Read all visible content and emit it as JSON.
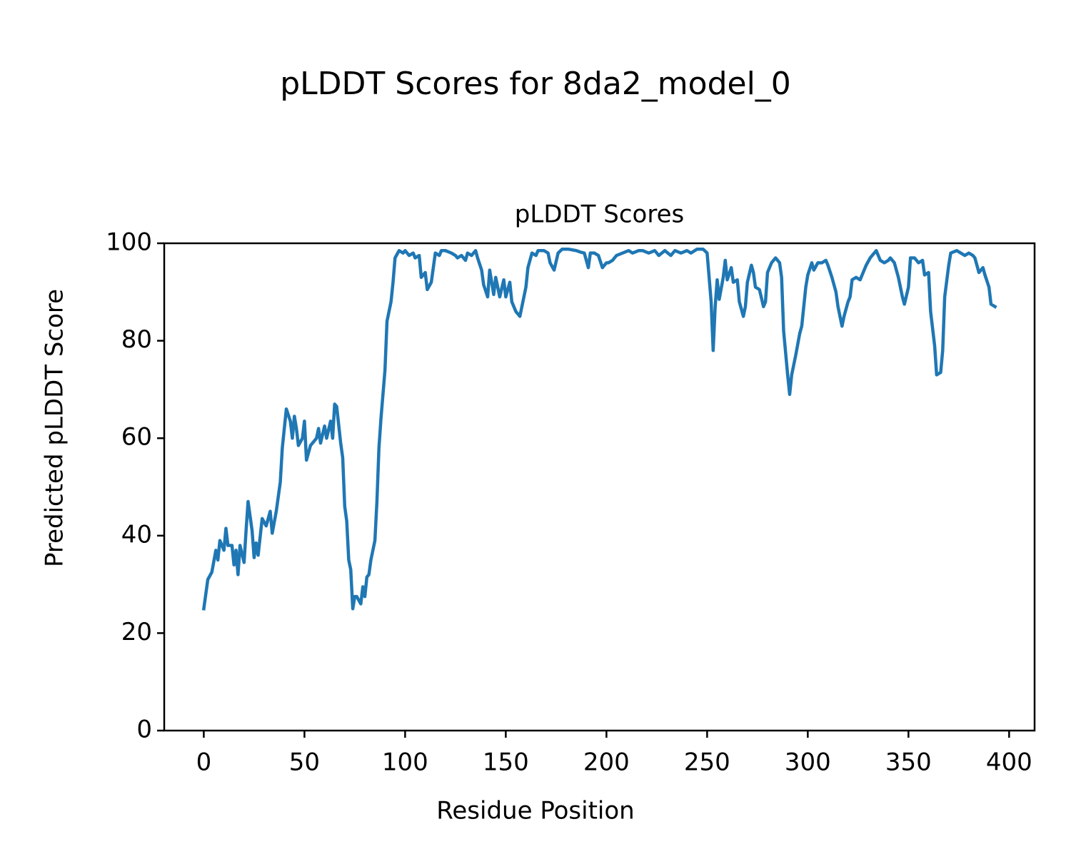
{
  "chart_data": {
    "type": "line",
    "title": "pLDDT Scores for 8da2_model_0",
    "subtitle": "pLDDT Scores",
    "x_label": "Residue Position",
    "y_label": "Predicted pLDDT Score",
    "color": "#1f77b4",
    "xlim": [
      -19.65,
      412.65
    ],
    "ylim": [
      0,
      100
    ],
    "xticks": [
      0,
      50,
      100,
      150,
      200,
      250,
      300,
      350,
      400
    ],
    "yticks": [
      0,
      20,
      40,
      60,
      80,
      100
    ],
    "grid": false,
    "x": [
      0,
      2,
      4,
      6,
      7,
      8,
      10,
      11,
      12,
      14,
      15,
      16,
      17,
      18,
      20,
      21,
      22,
      24,
      25,
      26,
      27,
      29,
      31,
      33,
      34,
      36,
      38,
      39,
      40,
      41,
      43,
      44,
      45,
      46,
      47,
      49,
      50,
      51,
      53,
      54,
      56,
      57,
      58,
      60,
      61,
      63,
      64,
      65,
      66,
      68,
      69,
      70,
      71,
      72,
      73,
      74,
      75,
      76,
      78,
      79,
      80,
      81,
      82,
      83,
      85,
      86,
      87,
      88,
      90,
      91,
      93,
      94,
      95,
      97,
      99,
      100,
      102,
      104,
      105,
      107,
      108,
      110,
      111,
      113,
      114,
      115,
      117,
      118,
      120,
      123,
      125,
      126,
      128,
      130,
      131,
      133,
      135,
      136,
      138,
      139,
      141,
      142,
      144,
      145,
      147,
      149,
      150,
      152,
      153,
      155,
      157,
      158,
      160,
      161,
      163,
      165,
      166,
      169,
      171,
      172,
      174,
      176,
      178,
      181,
      185,
      187,
      189,
      191,
      192,
      194,
      196,
      198,
      200,
      201,
      203,
      205,
      208,
      211,
      213,
      216,
      218,
      221,
      224,
      226,
      229,
      232,
      234,
      237,
      240,
      242,
      245,
      248,
      250,
      252,
      253,
      254,
      255,
      256,
      258,
      259,
      260,
      262,
      263,
      265,
      266,
      268,
      269,
      270,
      272,
      273,
      274,
      276,
      278,
      279,
      280,
      282,
      284,
      286,
      287,
      288,
      290,
      291,
      292,
      294,
      296,
      297,
      299,
      300,
      302,
      303,
      305,
      307,
      309,
      310,
      312,
      314,
      315,
      317,
      318,
      320,
      321,
      322,
      324,
      326,
      327,
      329,
      331,
      332,
      334,
      336,
      338,
      340,
      341,
      343,
      345,
      347,
      348,
      350,
      351,
      353,
      355,
      357,
      358,
      360,
      361,
      363,
      364,
      366,
      367,
      368,
      370,
      371,
      374,
      376,
      378,
      380,
      382,
      383,
      385,
      387,
      388,
      390,
      391,
      393
    ],
    "values": [
      25,
      31,
      32.5,
      37,
      35,
      39,
      37,
      41.5,
      38,
      38,
      34,
      37,
      32,
      38,
      34.5,
      41,
      47,
      41,
      35.5,
      38.5,
      36,
      43.5,
      42,
      45,
      40.5,
      45,
      51,
      58,
      62,
      66,
      63.5,
      60,
      64.5,
      62,
      58.5,
      60,
      63.5,
      55.5,
      58.5,
      59,
      60,
      62,
      59,
      62.5,
      60,
      63.5,
      60,
      67,
      66.5,
      59,
      56,
      46,
      43,
      35,
      33,
      25,
      27.5,
      27.5,
      26,
      29.5,
      27.5,
      31.5,
      32,
      35,
      39,
      47,
      58,
      64,
      74,
      84,
      88,
      92,
      97,
      98.5,
      98,
      98.5,
      97.5,
      98,
      97,
      97.5,
      93,
      94,
      90.5,
      92,
      95,
      98,
      97.5,
      98.5,
      98.5,
      98,
      97.5,
      97,
      97.5,
      96.5,
      98,
      97.5,
      98.5,
      97,
      94.5,
      91.5,
      89,
      94.5,
      89.5,
      93,
      89,
      92.5,
      89,
      92,
      88,
      86,
      85,
      87,
      91,
      95,
      98,
      97.5,
      98.5,
      98.5,
      98,
      96,
      94.5,
      98,
      98.8,
      98.8,
      98.5,
      98.2,
      98,
      95,
      98,
      98,
      97.5,
      95,
      96,
      96,
      96.5,
      97.5,
      98,
      98.5,
      98,
      98.5,
      98.5,
      98,
      98.5,
      97.5,
      98.5,
      97.5,
      98.5,
      98,
      98.5,
      98,
      98.8,
      98.8,
      98,
      88,
      78,
      87,
      92.5,
      88.5,
      93,
      96.5,
      92.5,
      95,
      92,
      92.5,
      88,
      85,
      87,
      92,
      95.5,
      94,
      91,
      90.5,
      87,
      88,
      94,
      96,
      97,
      96,
      93,
      82,
      73,
      69,
      73,
      77,
      81.5,
      83,
      91,
      93.5,
      96,
      94.5,
      96,
      96,
      96.5,
      95.5,
      93,
      90,
      87,
      83,
      85,
      88,
      89,
      92.5,
      93,
      92.5,
      93.5,
      95.5,
      97,
      97.5,
      98.5,
      96.5,
      96,
      96.5,
      97,
      96,
      93,
      89,
      87.5,
      91,
      97,
      97,
      96,
      96.5,
      93.5,
      94,
      86,
      79,
      73,
      73.5,
      78,
      89,
      95.5,
      98,
      98.5,
      98,
      97.5,
      98,
      97.5,
      97,
      94,
      95,
      93.5,
      91,
      87.5,
      87
    ]
  }
}
